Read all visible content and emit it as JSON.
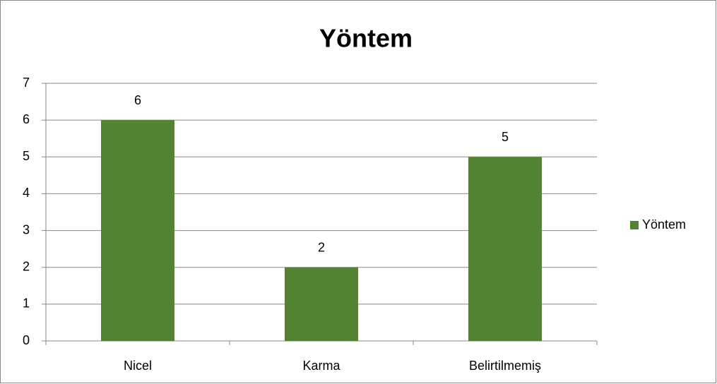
{
  "chart_data": {
    "type": "bar",
    "title": "Yöntem",
    "categories": [
      "Nicel",
      "Karma",
      "Belirtilmemiş"
    ],
    "series": [
      {
        "name": "Yöntem",
        "color": "#548235",
        "values": [
          6,
          2,
          5
        ]
      }
    ],
    "ylim": [
      0,
      7
    ],
    "yticks": [
      0,
      1,
      2,
      3,
      4,
      5,
      6,
      7
    ],
    "grid": true,
    "legend": "right"
  }
}
